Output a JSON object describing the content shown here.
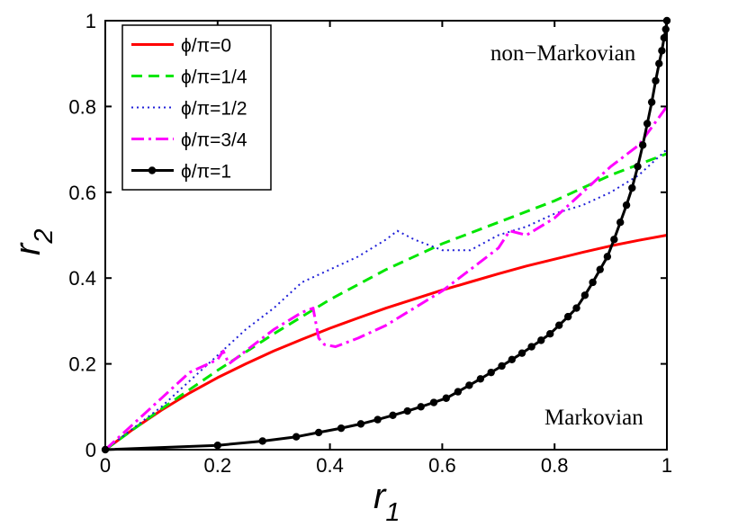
{
  "chart_data": {
    "type": "line",
    "title": "",
    "xlabel": "r1",
    "ylabel": "r2",
    "xlabel_main": "r",
    "xlabel_sub": "1",
    "ylabel_main": "r",
    "ylabel_sub": "2",
    "xlim": [
      0,
      1
    ],
    "ylim": [
      0,
      1
    ],
    "xticks": [
      0,
      0.2,
      0.4,
      0.6,
      0.8,
      1
    ],
    "xtick_labels": [
      "0",
      "0.2",
      "0.4",
      "0.6",
      "0.8",
      "1"
    ],
    "yticks": [
      0,
      0.2,
      0.4,
      0.6,
      0.8,
      1
    ],
    "ytick_labels": [
      "0",
      "0.2",
      "0.4",
      "0.6",
      "0.8",
      "1"
    ],
    "grid": false,
    "legend_position": "top-left",
    "annotations": [
      {
        "text": "non−Markovian",
        "x": 0.815,
        "y": 0.925
      },
      {
        "text": "Markovian",
        "x": 0.87,
        "y": 0.075
      }
    ],
    "series": [
      {
        "name": "ϕ/π=0",
        "color": "#ff0000",
        "style": "solid",
        "x": [
          0,
          0.05,
          0.1,
          0.15,
          0.2,
          0.25,
          0.3,
          0.35,
          0.4,
          0.45,
          0.5,
          0.55,
          0.6,
          0.65,
          0.7,
          0.75,
          0.8,
          0.85,
          0.9,
          0.95,
          1.0
        ],
        "y": [
          0,
          0.048,
          0.092,
          0.132,
          0.168,
          0.2,
          0.23,
          0.257,
          0.283,
          0.307,
          0.33,
          0.351,
          0.372,
          0.391,
          0.41,
          0.428,
          0.444,
          0.46,
          0.475,
          0.488,
          0.5
        ]
      },
      {
        "name": "ϕ/π=1/4",
        "color": "#00e600",
        "style": "dashed",
        "x": [
          0,
          0.1,
          0.2,
          0.3,
          0.4,
          0.5,
          0.6,
          0.7,
          0.8,
          0.9,
          1.0
        ],
        "y": [
          0,
          0.095,
          0.185,
          0.27,
          0.35,
          0.42,
          0.48,
          0.53,
          0.58,
          0.64,
          0.69
        ]
      },
      {
        "name": "ϕ/π=1/2",
        "color": "#1f1fd8",
        "style": "dotted",
        "x": [
          0,
          0.05,
          0.1,
          0.15,
          0.2,
          0.25,
          0.3,
          0.35,
          0.4,
          0.45,
          0.5,
          0.52,
          0.55,
          0.6,
          0.65,
          0.7,
          0.75,
          0.8,
          0.85,
          0.9,
          0.95,
          1.0
        ],
        "y": [
          0,
          0.05,
          0.1,
          0.16,
          0.22,
          0.28,
          0.33,
          0.39,
          0.42,
          0.45,
          0.49,
          0.51,
          0.49,
          0.465,
          0.465,
          0.5,
          0.52,
          0.55,
          0.57,
          0.6,
          0.64,
          0.7
        ]
      },
      {
        "name": "ϕ/π=3/4",
        "color": "#ff00ff",
        "style": "dashdot",
        "x": [
          0,
          0.05,
          0.1,
          0.15,
          0.2,
          0.21,
          0.22,
          0.25,
          0.3,
          0.35,
          0.37,
          0.38,
          0.39,
          0.41,
          0.45,
          0.5,
          0.55,
          0.6,
          0.65,
          0.7,
          0.72,
          0.75,
          0.8,
          0.85,
          0.9,
          0.95,
          1.0
        ],
        "y": [
          0,
          0.06,
          0.12,
          0.18,
          0.21,
          0.23,
          0.2,
          0.23,
          0.28,
          0.32,
          0.33,
          0.26,
          0.245,
          0.24,
          0.26,
          0.29,
          0.33,
          0.37,
          0.42,
          0.47,
          0.51,
          0.5,
          0.54,
          0.6,
          0.66,
          0.71,
          0.8
        ]
      },
      {
        "name": "ϕ/π=1",
        "color": "#000000",
        "style": "solid-markers",
        "x": [
          0,
          0.2,
          0.28,
          0.34,
          0.38,
          0.42,
          0.455,
          0.485,
          0.512,
          0.538,
          0.562,
          0.585,
          0.607,
          0.628,
          0.648,
          0.668,
          0.687,
          0.706,
          0.724,
          0.742,
          0.759,
          0.776,
          0.792,
          0.808,
          0.824,
          0.839,
          0.854,
          0.868,
          0.881,
          0.894,
          0.906,
          0.917,
          0.928,
          0.938,
          0.948,
          0.957,
          0.965,
          0.973,
          0.98,
          0.986,
          0.991,
          0.995,
          0.998,
          1.0
        ],
        "y": [
          0,
          0.01,
          0.02,
          0.03,
          0.04,
          0.05,
          0.06,
          0.07,
          0.08,
          0.09,
          0.1,
          0.11,
          0.12,
          0.135,
          0.15,
          0.165,
          0.18,
          0.195,
          0.21,
          0.225,
          0.24,
          0.255,
          0.27,
          0.29,
          0.31,
          0.33,
          0.36,
          0.39,
          0.42,
          0.45,
          0.49,
          0.53,
          0.57,
          0.61,
          0.66,
          0.71,
          0.76,
          0.81,
          0.86,
          0.9,
          0.93,
          0.96,
          0.98,
          1.0
        ]
      }
    ]
  }
}
